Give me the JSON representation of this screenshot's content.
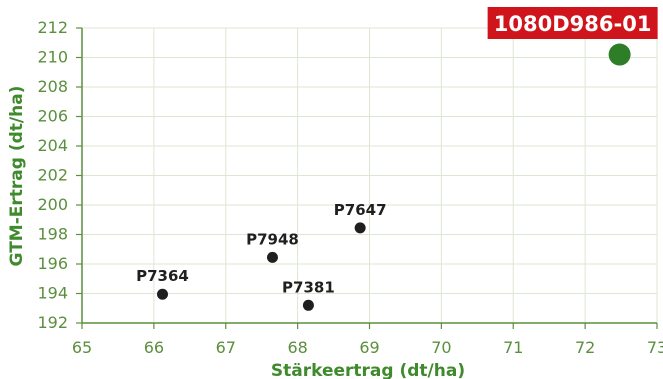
{
  "chart_data": {
    "type": "scatter",
    "xlabel": "Stärkeertrag (dt/ha)",
    "ylabel": "GTM-Ertrag (dt/ha)",
    "xlim": [
      65,
      73
    ],
    "ylim": [
      192,
      212
    ],
    "xticks": [
      "65",
      "66",
      "67",
      "68",
      "69",
      "70",
      "71",
      "72",
      "73"
    ],
    "yticks": [
      "192",
      "194",
      "196",
      "198",
      "200",
      "202",
      "204",
      "206",
      "208",
      "210",
      "212"
    ],
    "grid": true,
    "points": [
      {
        "label": "P7364",
        "x": 66.12,
        "y": 193.95
      },
      {
        "label": "P7948",
        "x": 67.65,
        "y": 196.45
      },
      {
        "label": "P7647",
        "x": 68.87,
        "y": 198.45
      },
      {
        "label": "P7381",
        "x": 68.15,
        "y": 193.2
      }
    ],
    "highlight": {
      "label": "1080D986-01",
      "x": 72.48,
      "y": 210.2
    }
  },
  "colors": {
    "axis": "#5b8f3e",
    "grid": "#dde6d3",
    "point": "#1f1f1f",
    "highlight_point": "#2e7d27",
    "highlight_badge": "#d0141b"
  }
}
